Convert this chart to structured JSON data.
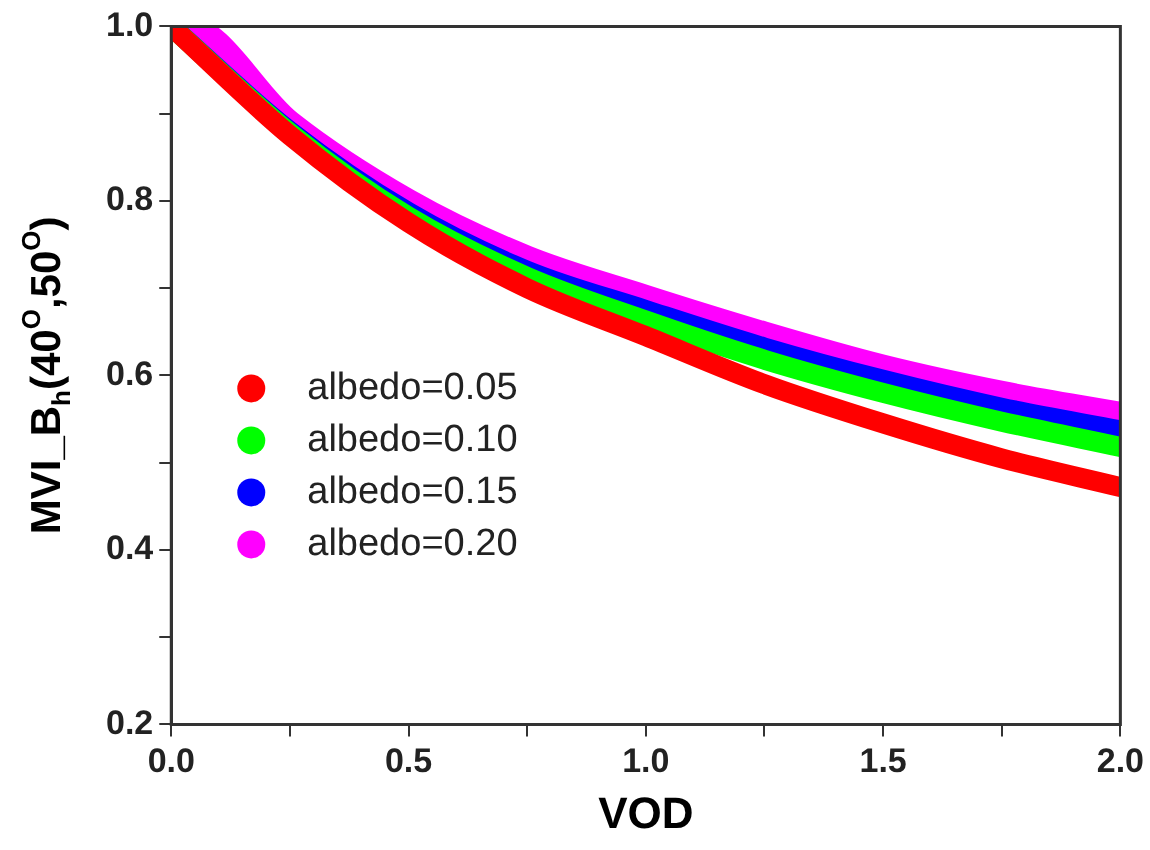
{
  "chart_data": {
    "type": "line",
    "xlabel": "VOD",
    "ylabel": "MVI_B$_{h}$(40$^{O}$,50$^{O}$)",
    "x": [
      0,
      0.25,
      0.5,
      0.75,
      1,
      1.25,
      1.5,
      1.75,
      2
    ],
    "series": [
      {
        "name": "albedo=0.05",
        "color": "#ff0000",
        "values": [
          1,
          0.875,
          0.775,
          0.7,
          0.645,
          0.59,
          0.545,
          0.505,
          0.472
        ]
      },
      {
        "name": "albedo=0.10",
        "color": "#00ff00",
        "values": [
          1,
          0.878,
          0.782,
          0.713,
          0.663,
          0.618,
          0.58,
          0.547,
          0.518
        ]
      },
      {
        "name": "albedo=0.15",
        "color": "#0000ff",
        "values": [
          1,
          0.88,
          0.787,
          0.72,
          0.675,
          0.632,
          0.595,
          0.563,
          0.537
        ]
      },
      {
        "name": "albedo=0.20",
        "color": "#ff00ff",
        "x": [
          0,
          0.03,
          0.25,
          0.5,
          0.75,
          1,
          1.25,
          1.5,
          1.75,
          2
        ],
        "values": [
          1,
          1,
          0.89,
          0.8,
          0.735,
          0.69,
          0.648,
          0.61,
          0.58,
          0.556
        ]
      }
    ],
    "xlim": [
      0,
      2
    ],
    "xticks": [
      {
        "value": 0,
        "label": "0.0"
      },
      {
        "value": 0.25,
        "label": null
      },
      0.5,
      {
        "value": 0.75,
        "label": null
      },
      {
        "value": 1,
        "label": "1.0"
      },
      {
        "value": 1.25,
        "label": null
      },
      1.5,
      {
        "value": 1.75,
        "label": null
      },
      {
        "value": 2,
        "label": "2.0"
      }
    ],
    "ylim": [
      0.2,
      1
    ],
    "yticks": [
      0.2,
      {
        "value": 0.3,
        "label": null
      },
      0.4,
      {
        "value": 0.5,
        "label": null
      },
      0.6,
      {
        "value": 0.7,
        "label": null
      },
      0.8,
      {
        "value": 0.9,
        "label": null
      },
      {
        "value": 1,
        "label": "1.0"
      }
    ],
    "grid": false,
    "legend": "bottom left",
    "line_style": "solid"
  }
}
